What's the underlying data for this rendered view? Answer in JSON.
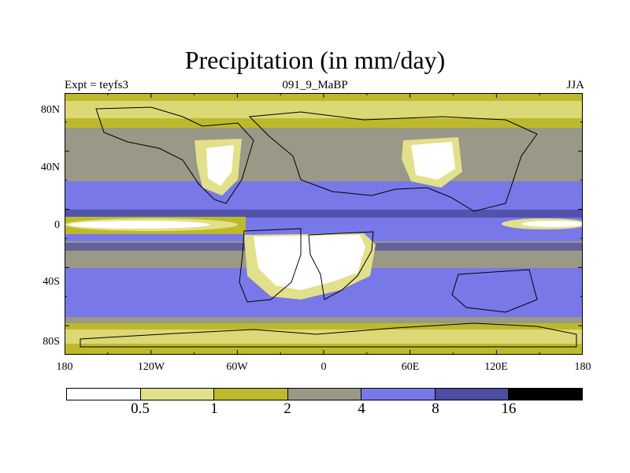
{
  "title": "Precipitation (in mm/day)",
  "experiment": "Expt = teyfs3",
  "run_name": "091_9_MaBP",
  "season": "JJA",
  "map": {
    "lat_labels": [
      "80N",
      "40N",
      "0",
      "40S",
      "80S"
    ],
    "lon_labels": [
      "180",
      "120W",
      "60W",
      "0",
      "60E",
      "120E",
      "180"
    ]
  },
  "colorbar": {
    "colors": [
      "#ffffff",
      "#e2e08a",
      "#bcba2c",
      "#9a9886",
      "#7878e8",
      "#4c4ca0",
      "#000000"
    ],
    "labels": [
      "0.5",
      "1",
      "2",
      "4",
      "8",
      "16"
    ]
  }
}
